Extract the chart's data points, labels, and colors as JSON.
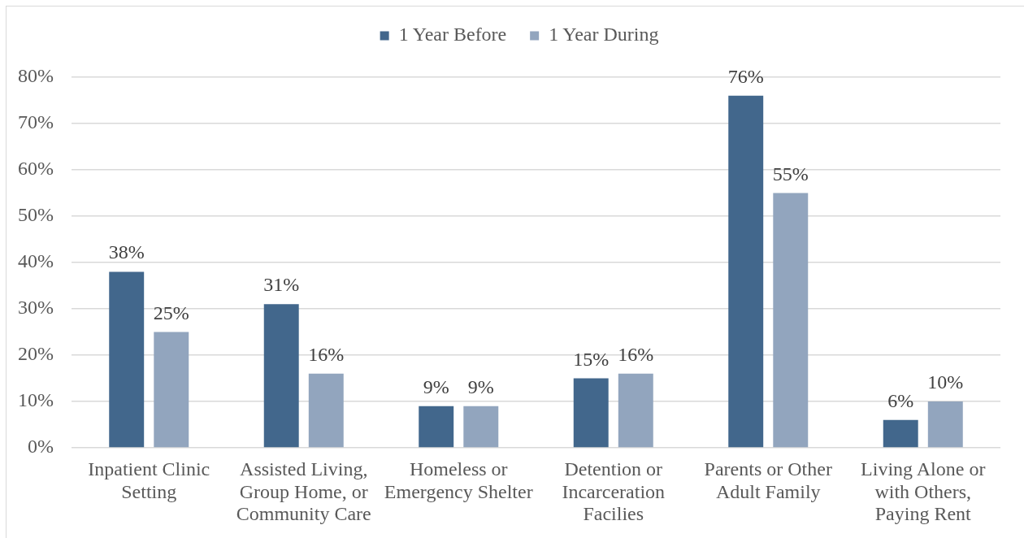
{
  "chart_data": {
    "type": "bar",
    "categories": [
      "Inpatient Clinic Setting",
      "Assisted Living, Group Home, or Community Care",
      "Homeless or Emergency Shelter",
      "Detention or Incarceration Facilies",
      "Parents or Other Adult Family",
      "Living Alone or with Others, Paying Rent"
    ],
    "series": [
      {
        "name": "1 Year Before",
        "color": "#42678c",
        "values": [
          38,
          31,
          9,
          15,
          76,
          6
        ],
        "value_labels": [
          "38%",
          "31%",
          "9%",
          "15%",
          "76%",
          "6%"
        ]
      },
      {
        "name": "1 Year During",
        "color": "#92a5be",
        "values": [
          25,
          16,
          9,
          16,
          55,
          10
        ],
        "value_labels": [
          "25%",
          "16%",
          "9%",
          "16%",
          "55%",
          "10%"
        ]
      }
    ],
    "ylim": [
      0,
      80
    ],
    "yticks": [
      {
        "value": 0,
        "label": "0%"
      },
      {
        "value": 10,
        "label": "10%"
      },
      {
        "value": 20,
        "label": "20%"
      },
      {
        "value": 30,
        "label": "30%"
      },
      {
        "value": 40,
        "label": "40%"
      },
      {
        "value": 50,
        "label": "50%"
      },
      {
        "value": 60,
        "label": "60%"
      },
      {
        "value": 70,
        "label": "70%"
      },
      {
        "value": 80,
        "label": "80%"
      }
    ],
    "grid": "y",
    "legend": "top"
  }
}
